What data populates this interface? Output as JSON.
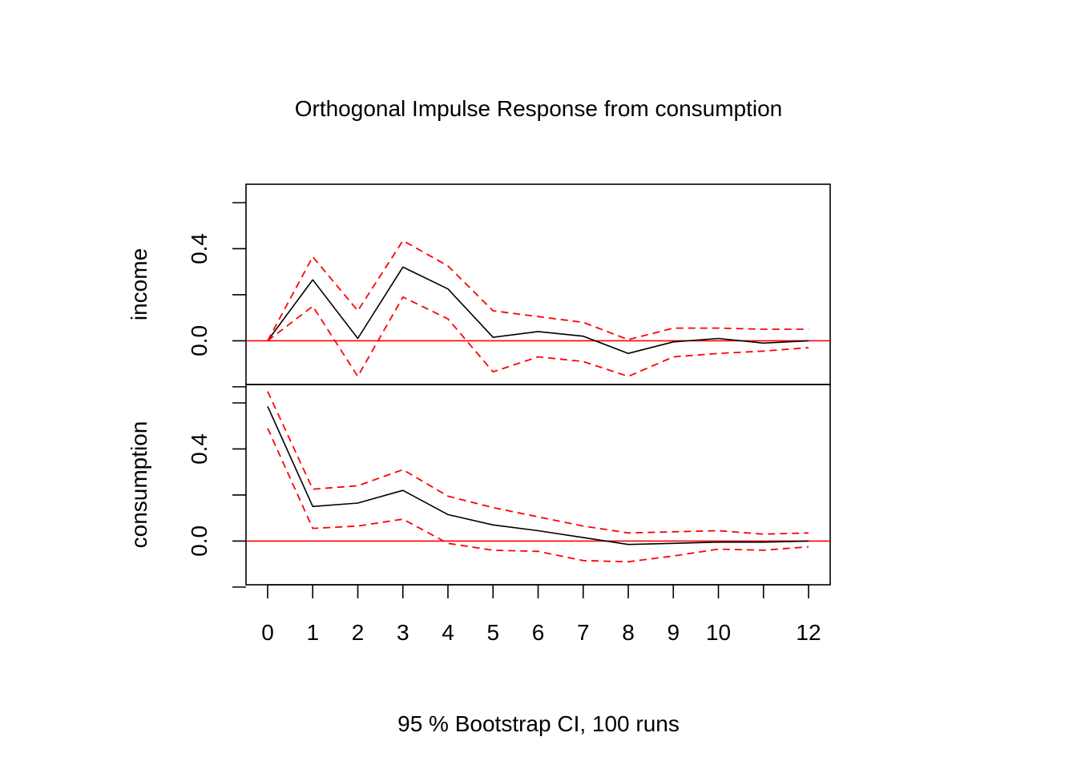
{
  "title": "Orthogonal Impulse Response from consumption",
  "footer": "95 % Bootstrap CI,  100 runs",
  "colors": {
    "response": "#000000",
    "ci": "#ff0000",
    "zero_line": "#ff0000",
    "axis": "#000000"
  },
  "chart_data": [
    {
      "type": "line",
      "panel": "income",
      "ylabel": "income",
      "x": [
        0,
        1,
        2,
        3,
        4,
        5,
        6,
        7,
        8,
        9,
        10,
        11,
        12
      ],
      "xticks": [
        0,
        1,
        2,
        3,
        4,
        5,
        6,
        7,
        8,
        9,
        10,
        11,
        12
      ],
      "xtick_labels": [
        "0",
        "1",
        "2",
        "3",
        "4",
        "5",
        "6",
        "7",
        "8",
        "9",
        "10",
        "",
        "12"
      ],
      "yticks": [
        -0.2,
        0.0,
        0.2,
        0.4,
        0.6
      ],
      "ytick_labels": [
        "",
        "0.0",
        "",
        "0.4",
        ""
      ],
      "ylim": [
        -0.19,
        0.68
      ],
      "grid": false,
      "series": [
        {
          "role": "response",
          "values": [
            0.0,
            0.265,
            0.01,
            0.32,
            0.225,
            0.015,
            0.04,
            0.02,
            -0.055,
            -0.005,
            0.01,
            -0.01,
            0.0
          ]
        },
        {
          "role": "upper",
          "values": [
            0.0,
            0.365,
            0.13,
            0.435,
            0.325,
            0.13,
            0.105,
            0.08,
            0.005,
            0.055,
            0.055,
            0.05,
            0.05
          ]
        },
        {
          "role": "lower",
          "values": [
            0.0,
            0.15,
            -0.155,
            0.19,
            0.095,
            -0.135,
            -0.07,
            -0.09,
            -0.155,
            -0.07,
            -0.055,
            -0.045,
            -0.03
          ]
        }
      ]
    },
    {
      "type": "line",
      "panel": "consumption",
      "ylabel": "consumption",
      "x": [
        0,
        1,
        2,
        3,
        4,
        5,
        6,
        7,
        8,
        9,
        10,
        11,
        12
      ],
      "xticks": [
        0,
        1,
        2,
        3,
        4,
        5,
        6,
        7,
        8,
        9,
        10,
        11,
        12
      ],
      "xtick_labels": [
        "0",
        "1",
        "2",
        "3",
        "4",
        "5",
        "6",
        "7",
        "8",
        "9",
        "10",
        "",
        "12"
      ],
      "yticks": [
        -0.2,
        0.0,
        0.2,
        0.4,
        0.6
      ],
      "ytick_labels": [
        "",
        "0.0",
        "",
        "0.4",
        ""
      ],
      "ylim": [
        -0.19,
        0.68
      ],
      "grid": false,
      "series": [
        {
          "role": "response",
          "values": [
            0.585,
            0.15,
            0.165,
            0.22,
            0.115,
            0.07,
            0.045,
            0.015,
            -0.015,
            -0.01,
            -0.005,
            -0.005,
            0.0
          ]
        },
        {
          "role": "upper",
          "values": [
            0.65,
            0.225,
            0.24,
            0.31,
            0.195,
            0.145,
            0.105,
            0.065,
            0.035,
            0.04,
            0.045,
            0.03,
            0.035
          ]
        },
        {
          "role": "lower",
          "values": [
            0.49,
            0.055,
            0.065,
            0.095,
            -0.01,
            -0.04,
            -0.045,
            -0.085,
            -0.09,
            -0.065,
            -0.035,
            -0.04,
            -0.025
          ]
        }
      ]
    }
  ]
}
